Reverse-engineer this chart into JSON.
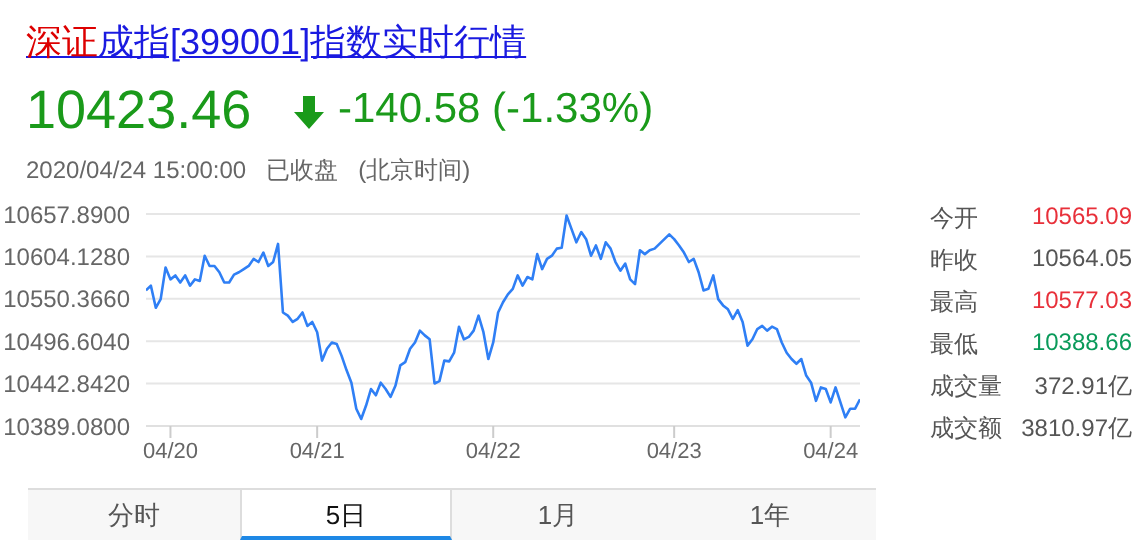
{
  "chart_data": {
    "type": "line",
    "title": "深证成指[399001]指数实时行情",
    "annotations": [
      "10423.46",
      "-140.58 (-1.33%)",
      "2020/04/24 15:00:00",
      "已收盘",
      "(北京时间)",
      "今开",
      "10565.09",
      "昨收",
      "10564.05",
      "最高",
      "10577.03",
      "最低",
      "10388.66",
      "成交量",
      "372.91亿",
      "成交额",
      "3810.97亿",
      "分时",
      "5日",
      "1月",
      "1年"
    ],
    "color": "#2f7ff5",
    "marker": "none",
    "grid": "y",
    "categories": [
      null,
      null,
      null,
      null,
      null,
      "04/20",
      null,
      null,
      null,
      null,
      null,
      null,
      null,
      null,
      null,
      null,
      null,
      null,
      null,
      null,
      null,
      null,
      null,
      null,
      null,
      null,
      null,
      null,
      null,
      null,
      null,
      null,
      null,
      null,
      null,
      "04/21",
      null,
      null,
      null,
      null,
      null,
      null,
      null,
      null,
      null,
      null,
      null,
      null,
      null,
      null,
      null,
      null,
      null,
      null,
      null,
      null,
      null,
      null,
      null,
      null,
      null,
      null,
      null,
      null,
      null,
      null,
      null,
      null,
      null,
      null,
      null,
      "04/22",
      null,
      null,
      null,
      null,
      null,
      null,
      null,
      null,
      null,
      null,
      null,
      null,
      null,
      null,
      null,
      null,
      null,
      null,
      null,
      null,
      null,
      null,
      null,
      null,
      null,
      null,
      null,
      null,
      null,
      null,
      null,
      null,
      null,
      null,
      null,
      null,
      "04/23",
      null,
      null,
      null,
      null,
      null,
      null,
      null,
      null,
      null,
      null,
      null,
      null,
      null,
      null,
      null,
      null,
      null,
      null,
      null,
      null,
      null,
      null,
      null,
      null,
      null,
      null,
      null,
      null,
      null,
      null,
      null,
      "04/24",
      null,
      null,
      null,
      null,
      null,
      null
    ],
    "ylim": [
      10389.08,
      10657.89
    ],
    "yticks": [
      {
        "value": 10389.08,
        "label": "10389.0800"
      },
      {
        "value": 10442.842,
        "label": "10442.8420"
      },
      {
        "value": 10496.604,
        "label": "10496.6040"
      },
      {
        "value": 10550.366,
        "label": "10550.3660"
      },
      {
        "value": 10604.128,
        "label": "10604.1280"
      },
      {
        "value": 10657.89,
        "label": "10657.8900"
      }
    ],
    "values": [
      10561,
      10567,
      10539,
      10550,
      10590,
      10575,
      10580,
      10571,
      10580,
      10567,
      10575,
      10573,
      10605,
      10592,
      10592,
      10584,
      10571,
      10571,
      10581,
      10584,
      10588,
      10592,
      10601,
      10597,
      10609,
      10592,
      10597,
      10620,
      10533,
      10529,
      10521,
      10525,
      10533,
      10516,
      10521,
      10508,
      10472,
      10487,
      10495,
      10493,
      10478,
      10460,
      10444,
      10411,
      10398,
      10415,
      10436,
      10428,
      10444,
      10436,
      10426,
      10440,
      10466,
      10470,
      10487,
      10495,
      10510,
      10504,
      10499,
      10443,
      10446,
      10472,
      10471,
      10482,
      10515,
      10499,
      10502,
      10510,
      10529,
      10508,
      10474,
      10495,
      10533,
      10546,
      10556,
      10563,
      10580,
      10567,
      10578,
      10575,
      10607,
      10588,
      10601,
      10605,
      10614,
      10615,
      10656,
      10639,
      10622,
      10635,
      10626,
      10605,
      10618,
      10601,
      10622,
      10614,
      10597,
      10586,
      10595,
      10575,
      10569,
      10612,
      10607,
      10612,
      10614,
      10620,
      10626,
      10632,
      10626,
      10618,
      10609,
      10597,
      10601,
      10584,
      10561,
      10563,
      10580,
      10550,
      10542,
      10537,
      10525,
      10536,
      10521,
      10491,
      10499,
      10512,
      10516,
      10510,
      10515,
      10512,
      10495,
      10482,
      10474,
      10468,
      10474,
      10453,
      10444,
      10421,
      10438,
      10436,
      10419,
      10438,
      10419,
      10400,
      10411,
      10411,
      10423
    ]
  }
}
